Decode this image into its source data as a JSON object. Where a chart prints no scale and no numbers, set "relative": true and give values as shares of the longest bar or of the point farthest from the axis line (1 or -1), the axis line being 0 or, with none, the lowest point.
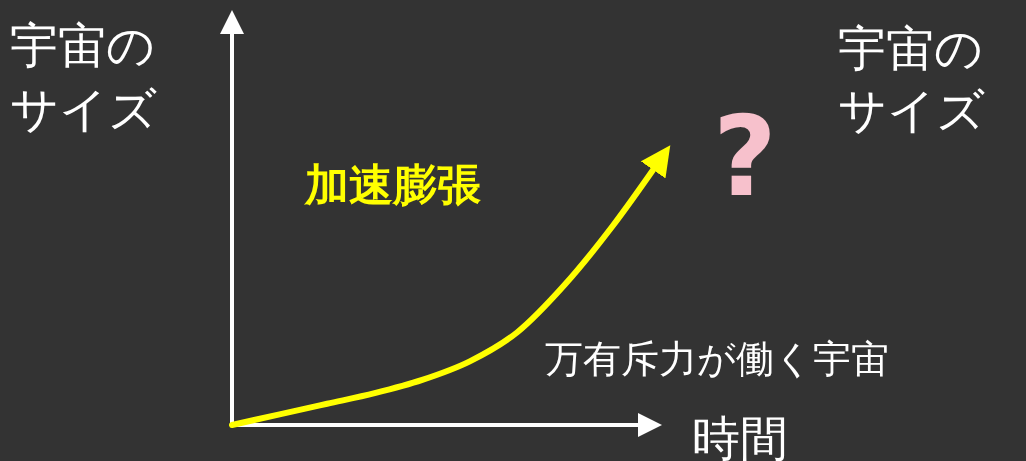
{
  "chart_data": {
    "type": "line",
    "relative": true,
    "ylabel": "宇宙のサイズ",
    "xlabel": "時間",
    "categories": [
      null,
      null,
      null,
      null,
      null,
      null,
      null,
      null,
      null,
      null
    ],
    "series": [
      {
        "color": "#ffff00",
        "values": [
          0,
          0.04,
          0.08,
          0.12,
          0.17,
          0.24,
          0.35,
          0.53,
          0.75,
          1
        ]
      }
    ],
    "annotations": [
      "加速膨張",
      "万有斥力が働く宇宙",
      "?",
      "宇宙のサイズ"
    ]
  }
}
